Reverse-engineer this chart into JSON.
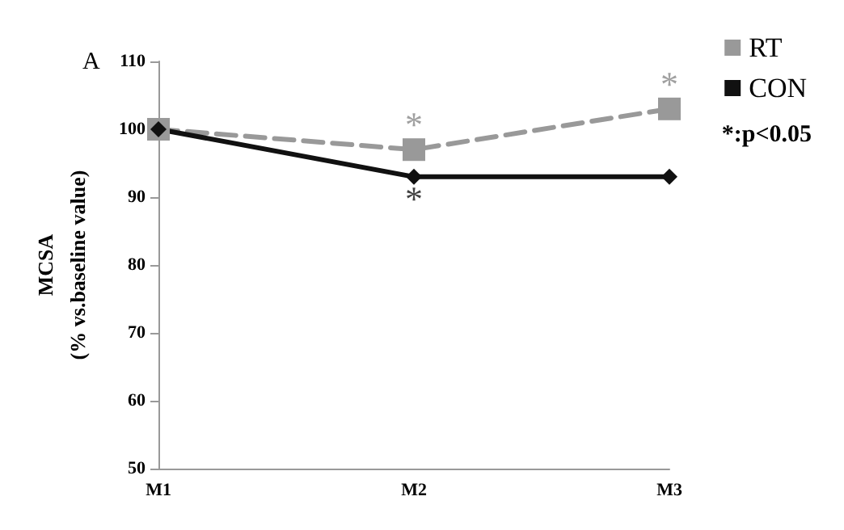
{
  "chart_data": {
    "type": "line",
    "title": "A",
    "ylabel": "MCSA\n(% vs.baseline value)",
    "categories": [
      "M1",
      "M2",
      "M3"
    ],
    "series": [
      {
        "name": "RT",
        "color": "#999999",
        "values": [
          100,
          97,
          103
        ],
        "marker": "square",
        "line_style": "dashed"
      },
      {
        "name": "CON",
        "color": "#111111",
        "values": [
          100,
          93,
          93
        ],
        "marker": "diamond",
        "line_style": "solid"
      }
    ],
    "ylim": [
      50,
      110
    ],
    "yticks": [
      50,
      60,
      70,
      80,
      90,
      100,
      110
    ],
    "grid": false,
    "legend": "top right",
    "annotations": [
      {
        "text": "*",
        "x": "M2",
        "y": 97
      },
      {
        "text": "*",
        "x": "M3",
        "y": 103
      },
      {
        "text": "*",
        "x": "M2",
        "y": 93
      },
      "*:p<0.05"
    ]
  }
}
